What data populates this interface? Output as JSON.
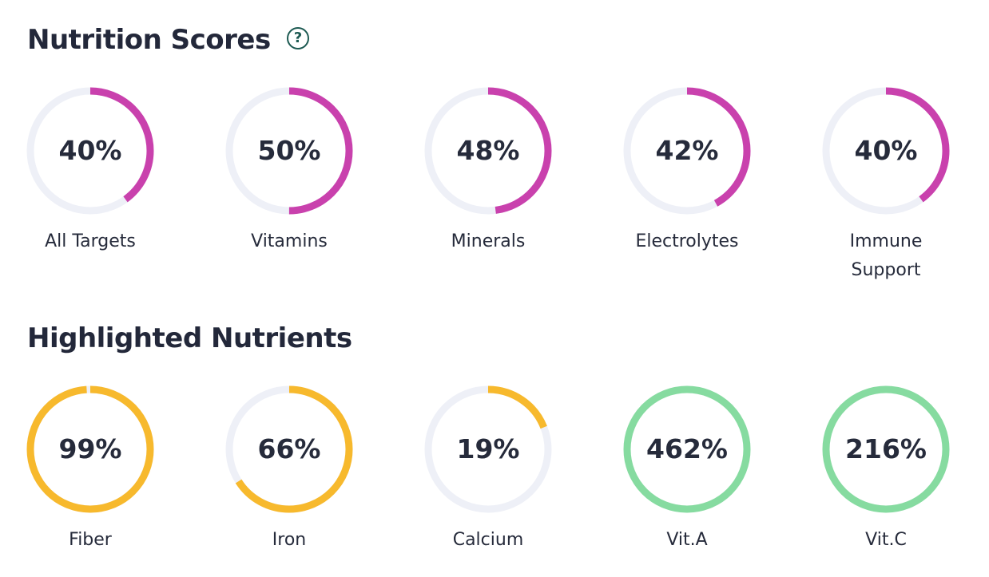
{
  "nutrition_scores": {
    "title": "Nutrition Scores",
    "help_icon": "question-circle-icon",
    "progress_color": "#c941ad",
    "track_color": "#eef0f7",
    "items": [
      {
        "label": "All Targets",
        "value_text": "40%",
        "percent": 40
      },
      {
        "label": "Vitamins",
        "value_text": "50%",
        "percent": 50
      },
      {
        "label": "Minerals",
        "value_text": "48%",
        "percent": 48
      },
      {
        "label": "Electrolytes",
        "value_text": "42%",
        "percent": 42
      },
      {
        "label": "Immune\nSupport",
        "value_text": "40%",
        "percent": 40
      }
    ]
  },
  "highlighted_nutrients": {
    "title": "Highlighted Nutrients",
    "track_color": "#eef0f7",
    "items": [
      {
        "label": "Fiber",
        "value_text": "99%",
        "percent": 99,
        "color": "#f7b92d"
      },
      {
        "label": "Iron",
        "value_text": "66%",
        "percent": 66,
        "color": "#f7b92d"
      },
      {
        "label": "Calcium",
        "value_text": "19%",
        "percent": 19,
        "color": "#f7b92d"
      },
      {
        "label": "Vit.A",
        "value_text": "462%",
        "percent": 462,
        "color": "#86dba0"
      },
      {
        "label": "Vit.C",
        "value_text": "216%",
        "percent": 216,
        "color": "#86dba0"
      }
    ]
  }
}
